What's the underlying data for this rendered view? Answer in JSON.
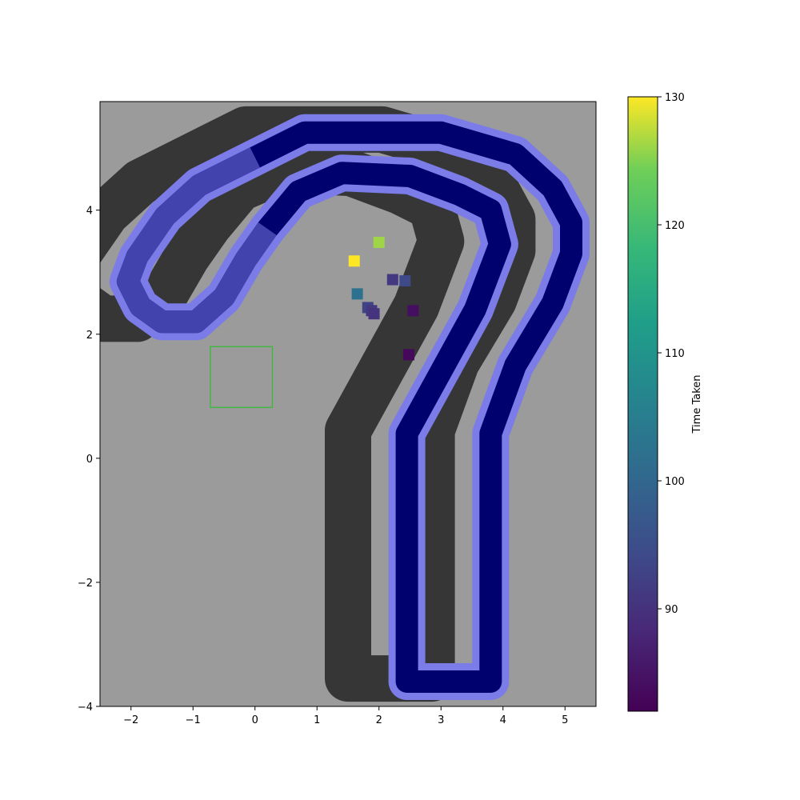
{
  "chart_data": {
    "type": "scatter",
    "title": "",
    "xlabel": "",
    "ylabel": "",
    "xlim": [
      -2.5,
      5.5
    ],
    "ylim": [
      -4,
      5.75
    ],
    "xticks": [
      -2,
      -1,
      0,
      1,
      2,
      3,
      4,
      5
    ],
    "yticks": [
      -4,
      -2,
      0,
      2,
      4
    ],
    "xtick_labels": [
      "−2",
      "−1",
      "0",
      "1",
      "2",
      "3",
      "4",
      "5"
    ],
    "ytick_labels": [
      "−4",
      "−2",
      "0",
      "2",
      "4"
    ],
    "colorbar": {
      "label": "Time Taken",
      "range": [
        82,
        130
      ],
      "ticks": [
        90,
        100,
        110,
        120,
        130
      ],
      "tick_labels": [
        "90",
        "100",
        "110",
        "120",
        "130"
      ]
    },
    "colors": {
      "background": "#9b9b9b",
      "shadow": "#363636",
      "track_outline": "#7b7ce8",
      "track_fill_dark": "#00006e",
      "track_fill_light": "#4a4ab4",
      "start_box": "#2fbf2f"
    },
    "track_centerline": [
      [
        3.1,
        -3.6
      ],
      [
        2.45,
        -3.6
      ],
      [
        2.45,
        0.4
      ],
      [
        3.55,
        2.4
      ],
      [
        3.95,
        3.45
      ],
      [
        3.8,
        4.0
      ],
      [
        3.3,
        4.25
      ],
      [
        2.5,
        4.55
      ],
      [
        1.4,
        4.6
      ],
      [
        0.7,
        4.3
      ],
      [
        0.2,
        3.7
      ],
      [
        -0.15,
        3.2
      ],
      [
        -0.5,
        2.6
      ],
      [
        -0.95,
        2.2
      ],
      [
        -1.5,
        2.2
      ],
      [
        -1.85,
        2.45
      ],
      [
        -2.05,
        2.85
      ],
      [
        -1.9,
        3.25
      ],
      [
        -1.45,
        3.9
      ],
      [
        -0.9,
        4.4
      ],
      [
        0.0,
        4.85
      ],
      [
        0.8,
        5.25
      ],
      [
        2.0,
        5.25
      ],
      [
        3.0,
        5.25
      ],
      [
        4.2,
        4.9
      ],
      [
        4.8,
        4.35
      ],
      [
        5.1,
        3.8
      ],
      [
        5.1,
        3.3
      ],
      [
        4.8,
        2.5
      ],
      [
        4.2,
        1.5
      ],
      [
        3.8,
        0.4
      ],
      [
        3.8,
        -3.6
      ],
      [
        3.1,
        -3.6
      ]
    ],
    "shadow_offset": [
      -0.95,
      0.05
    ],
    "start_box": {
      "x": [
        -0.72,
        0.28
      ],
      "y": [
        0.82,
        1.8
      ]
    },
    "points": [
      {
        "x": 1.6,
        "y": 3.18,
        "t": 130
      },
      {
        "x": 2.0,
        "y": 3.48,
        "t": 126
      },
      {
        "x": 1.65,
        "y": 2.65,
        "t": 102
      },
      {
        "x": 2.22,
        "y": 2.88,
        "t": 91
      },
      {
        "x": 2.42,
        "y": 2.86,
        "t": 94
      },
      {
        "x": 1.82,
        "y": 2.43,
        "t": 93
      },
      {
        "x": 1.88,
        "y": 2.38,
        "t": 91
      },
      {
        "x": 1.92,
        "y": 2.33,
        "t": 90
      },
      {
        "x": 2.55,
        "y": 2.38,
        "t": 84
      },
      {
        "x": 2.48,
        "y": 1.67,
        "t": 83
      }
    ]
  }
}
